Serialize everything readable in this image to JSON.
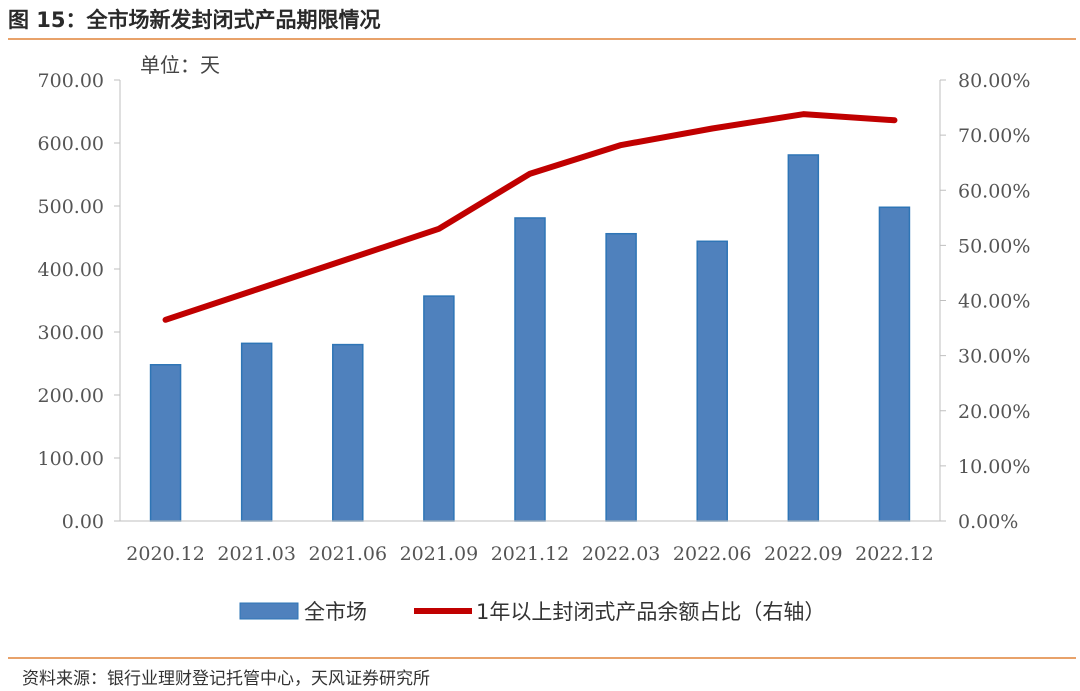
{
  "header": {
    "title": "图 15：全市场新发封闭式产品期限情况"
  },
  "footer": {
    "source": "资料来源：银行业理财登记托管中心，天风证券研究所"
  },
  "chart_data": {
    "type": "bar",
    "unit_label": "单位：天",
    "categories": [
      "2020.12",
      "2021.03",
      "2021.06",
      "2021.09",
      "2021.12",
      "2022.03",
      "2022.06",
      "2022.09",
      "2022.12"
    ],
    "left_axis": {
      "ylim": [
        0,
        700
      ],
      "ticks": [
        "0.00",
        "100.00",
        "200.00",
        "300.00",
        "400.00",
        "500.00",
        "600.00",
        "700.00"
      ]
    },
    "right_axis": {
      "ylim": [
        0,
        80
      ],
      "ticks": [
        "0.00%",
        "10.00%",
        "20.00%",
        "30.00%",
        "40.00%",
        "50.00%",
        "60.00%",
        "70.00%",
        "80.00%"
      ]
    },
    "series": [
      {
        "name": "全市场",
        "type": "bar",
        "axis": "left",
        "color": "#4f81bd",
        "values": [
          248,
          282,
          280,
          357,
          481,
          456,
          444,
          581,
          498
        ]
      },
      {
        "name": "1年以上封闭式产品余额占比（右轴）",
        "type": "line",
        "axis": "right",
        "color": "#c00000",
        "values": [
          36.5,
          42.0,
          47.5,
          53.0,
          63.0,
          68.2,
          71.2,
          73.8,
          72.7
        ]
      }
    ],
    "legend_position": "bottom",
    "grid": false
  }
}
